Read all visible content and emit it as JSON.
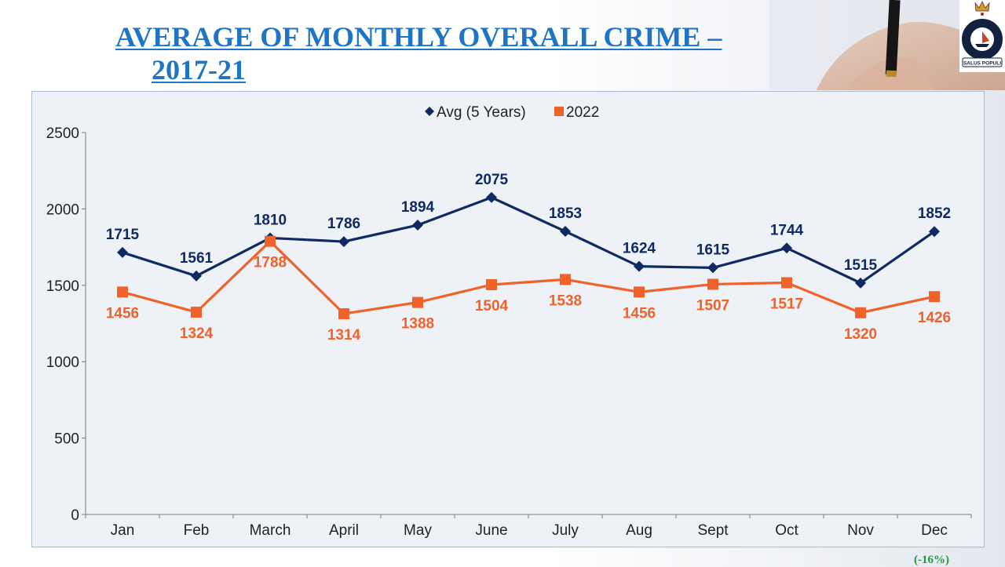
{
  "slide": {
    "title_line1": "AVERAGE OF MONTHLY OVERALL CRIME –",
    "title_line2": "2017-21",
    "logo_text": "SALUS POPULI",
    "logo_arc_text": "FIJI POLICE",
    "footnote": "(-16%)",
    "colors": {
      "title": "#1f74c4",
      "avg": "#0f2a62",
      "y2022": "#f0622a",
      "footnote": "#1f9a3c"
    }
  },
  "chart_data": {
    "type": "line",
    "title": "",
    "xlabel": "",
    "ylabel": "",
    "ylim": [
      0,
      2500
    ],
    "yticks": [
      0,
      500,
      1000,
      1500,
      2000,
      2500
    ],
    "grid": false,
    "legend": "top-center",
    "categories": [
      "Jan",
      "Feb",
      "March",
      "April",
      "May",
      "June",
      "July",
      "Aug",
      "Sept",
      "Oct",
      "Nov",
      "Dec"
    ],
    "series": [
      {
        "name": "Avg (5 Years)",
        "marker": "diamond",
        "color": "#0f2a62",
        "values": [
          1715,
          1561,
          1810,
          1786,
          1894,
          2075,
          1853,
          1624,
          1615,
          1744,
          1515,
          1852
        ]
      },
      {
        "name": "2022",
        "marker": "square",
        "color": "#f0622a",
        "values": [
          1456,
          1324,
          1788,
          1314,
          1388,
          1504,
          1538,
          1456,
          1507,
          1517,
          1320,
          1426
        ]
      }
    ]
  }
}
